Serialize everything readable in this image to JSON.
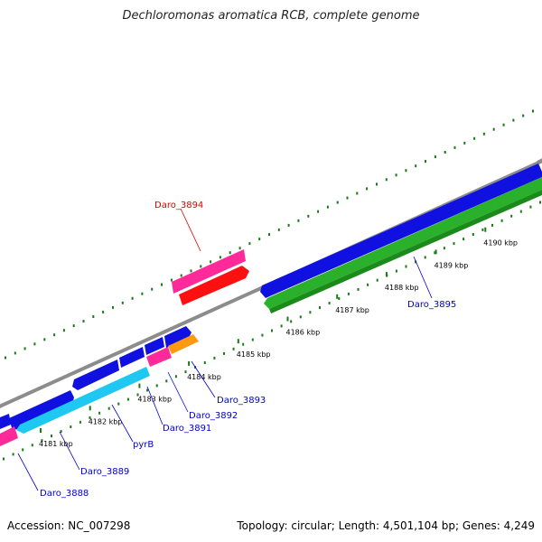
{
  "title": "Dechloromonas aromatica RCB, complete genome",
  "accession": "Accession: NC_007298",
  "summary": "Topology: circular; Length: 4,501,104 bp; Genes: 4,249",
  "colors": {
    "backbone": "#8c8c8c",
    "cds_forward": "#1010e0",
    "cds_reverse": "#2ab02a",
    "rna": "#ff2a9a",
    "highlight": "#ff1010",
    "light_blue": "#1ec8f0",
    "orange": "#ff9a10",
    "tick": "#1a7a1a",
    "label_blue": "#0000cc",
    "label_red": "#dd0000"
  },
  "ticks": [
    {
      "label": "4181 kbp"
    },
    {
      "label": "4182 kbp"
    },
    {
      "label": "4183 kbp"
    },
    {
      "label": "4184 kbp"
    },
    {
      "label": "4185 kbp"
    },
    {
      "label": "4186 kbp"
    },
    {
      "label": "4187 kbp"
    },
    {
      "label": "4188 kbp"
    },
    {
      "label": "4189 kbp"
    },
    {
      "label": "4190 kbp"
    }
  ],
  "gene_labels": [
    {
      "name": "Daro_3888",
      "color": "blue"
    },
    {
      "name": "Daro_3889",
      "color": "blue"
    },
    {
      "name": "pyrB",
      "color": "blue"
    },
    {
      "name": "Daro_3891",
      "color": "blue"
    },
    {
      "name": "Daro_3892",
      "color": "blue"
    },
    {
      "name": "Daro_3893",
      "color": "blue"
    },
    {
      "name": "Daro_3894",
      "color": "red"
    },
    {
      "name": "Daro_3895",
      "color": "blue"
    }
  ]
}
